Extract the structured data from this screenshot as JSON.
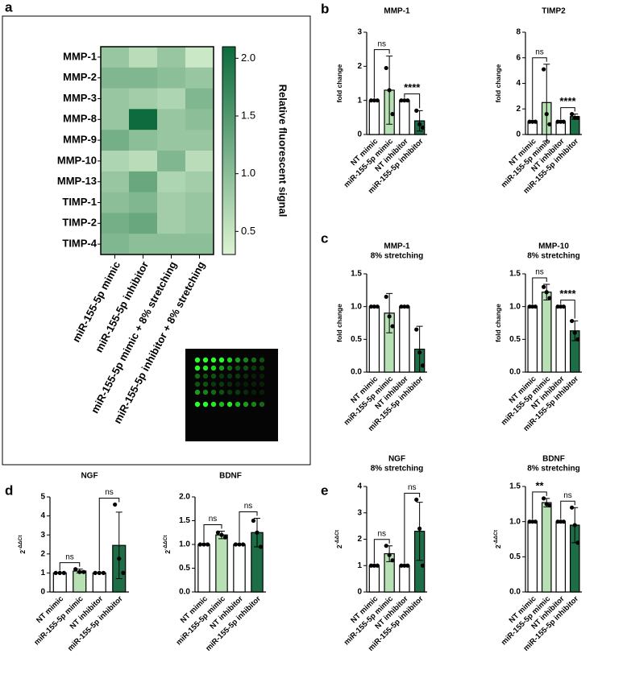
{
  "panel_labels": [
    "a",
    "b",
    "c",
    "d",
    "e"
  ],
  "chart_data": [
    {
      "type": "heatmap",
      "rows": [
        "MMP-1",
        "MMP-2",
        "MMP-3",
        "MMP-8",
        "MMP-9",
        "MMP-10",
        "MMP-13",
        "TIMP-1",
        "TIMP-2",
        "TIMP-4"
      ],
      "columns": [
        "miR-155-5p mimic",
        "miR-155-5p inhibitor",
        "miR-155-5p mimic + 8% stretching",
        "miR-155-5p inhibitor + 8% stretching"
      ],
      "values": [
        [
          0.9,
          0.6,
          0.9,
          0.45
        ],
        [
          1.1,
          1.1,
          1.0,
          0.9
        ],
        [
          0.9,
          0.8,
          0.7,
          1.1
        ],
        [
          0.9,
          2.1,
          0.9,
          1.0
        ],
        [
          1.2,
          1.0,
          0.9,
          0.9
        ],
        [
          0.7,
          0.6,
          1.1,
          0.6
        ],
        [
          0.9,
          1.3,
          0.7,
          0.8
        ],
        [
          1.0,
          1.1,
          0.8,
          0.9
        ],
        [
          1.2,
          1.3,
          0.8,
          0.9
        ],
        [
          1.1,
          1.0,
          1.0,
          1.0
        ]
      ],
      "zlim": [
        0.3,
        2.1
      ],
      "zticks": [
        0.5,
        {
          "value": 1,
          "label": "1.0"
        },
        1.5,
        {
          "value": 2,
          "label": "2.0"
        }
      ],
      "colormap": [
        "#dcf3d2",
        "#0d6b3d"
      ],
      "colorbar_label": "Relative fluorescent signal"
    },
    {
      "type": "bar",
      "title": "MMP-1",
      "ylabel": "fold change",
      "categories": [
        "NT mimic",
        "miR-155-5p mimic",
        "NT inhibitor",
        "miR-155-5p inhibitor"
      ],
      "colors": [
        "#ffffff",
        "#b7e1b5",
        "#ffffff",
        "#1d6d47"
      ],
      "values": [
        1,
        1.3,
        1,
        0.4
      ],
      "errors": [
        0,
        1.0,
        0,
        0.3
      ],
      "points": [
        [
          1,
          1,
          1
        ],
        [
          1.95,
          1.3,
          0.6
        ],
        [
          1,
          1,
          1
        ],
        [
          0.7,
          0.3,
          0.2
        ]
      ],
      "ylim": [
        0,
        3
      ],
      "yticks": [
        0,
        1,
        2,
        3
      ],
      "annotations": [
        {
          "between": [
            "NT mimic",
            "miR-155-5p mimic"
          ],
          "label": "ns"
        },
        {
          "between": [
            "NT inhibitor",
            "miR-155-5p inhibitor"
          ],
          "label": "****"
        }
      ]
    },
    {
      "type": "bar",
      "title": "TIMP2",
      "ylabel": "fold change",
      "categories": [
        "NT mimic",
        "miR-155-5p mimic",
        "NT inhibitor",
        "miR-155-5p inhibitor"
      ],
      "colors": [
        "#ffffff",
        "#b7e1b5",
        "#ffffff",
        "#1d6d47"
      ],
      "values": [
        1,
        2.5,
        1,
        1.4
      ],
      "errors": [
        0,
        3.0,
        0,
        0.2
      ],
      "points": [
        [
          1,
          1,
          1
        ],
        [
          5.1,
          1.6,
          0.8
        ],
        [
          1,
          1,
          1
        ],
        [
          1.6,
          1.3,
          1.3
        ]
      ],
      "ylim": [
        0,
        8
      ],
      "yticks": [
        0,
        2,
        4,
        6,
        8
      ],
      "annotations": [
        {
          "between": [
            "NT mimic",
            "miR-155-5p mimic"
          ],
          "label": "ns"
        },
        {
          "between": [
            "NT inhibitor",
            "miR-155-5p inhibitor"
          ],
          "label": "****"
        }
      ]
    },
    {
      "type": "bar",
      "title": "MMP-1",
      "subtitle": "8% stretching",
      "ylabel": "fold change",
      "categories": [
        "NT mimic",
        "miR-155-5p mimic",
        "NT inhibitor",
        "miR-155-5p inhibitor"
      ],
      "colors": [
        "#ffffff",
        "#b7e1b5",
        "#ffffff",
        "#1d6d47"
      ],
      "values": [
        1,
        0.9,
        1,
        0.35
      ],
      "errors": [
        0,
        0.3,
        0,
        0.35
      ],
      "points": [
        [
          1,
          1,
          1
        ],
        [
          1.15,
          0.85,
          0.7
        ],
        [
          1,
          1,
          1
        ],
        [
          0.65,
          0.3,
          0.1
        ]
      ],
      "ylim": [
        0,
        1.5
      ],
      "yticks": [
        {
          "value": 0,
          "label": "0.0"
        },
        0.5,
        {
          "value": 1,
          "label": "1.0"
        },
        1.5
      ],
      "annotations": []
    },
    {
      "type": "bar",
      "title": "MMP-10",
      "subtitle": "8% stretching",
      "ylabel": "fold change",
      "categories": [
        "NT mimic",
        "miR-155-5p mimic",
        "NT inhibitor",
        "miR-155-5p inhibitor"
      ],
      "colors": [
        "#ffffff",
        "#b7e1b5",
        "#ffffff",
        "#1d6d47"
      ],
      "values": [
        1,
        1.22,
        1,
        0.63
      ],
      "errors": [
        0,
        0.12,
        0,
        0.15
      ],
      "points": [
        [
          1,
          1,
          1
        ],
        [
          1.3,
          1.22,
          1.13
        ],
        [
          1,
          1,
          1
        ],
        [
          0.78,
          0.6,
          0.5
        ]
      ],
      "ylim": [
        0,
        1.5
      ],
      "yticks": [
        {
          "value": 0,
          "label": "0.0"
        },
        0.5,
        {
          "value": 1,
          "label": "1.0"
        },
        1.5
      ],
      "annotations": [
        {
          "between": [
            "NT mimic",
            "miR-155-5p mimic"
          ],
          "label": "ns"
        },
        {
          "between": [
            "NT inhibitor",
            "miR-155-5p inhibitor"
          ],
          "label": "****"
        }
      ]
    },
    {
      "type": "bar",
      "title": "NGF",
      "ylabel": "2",
      "ylabel_superscript": "-ΔΔCt",
      "categories": [
        "NT mimic",
        "miR-155-5p mimic",
        "NT inhibitor",
        "miR-155-5p inhibitor"
      ],
      "colors": [
        "#ffffff",
        "#b7e1b5",
        "#ffffff",
        "#1d6d47"
      ],
      "values": [
        1,
        1.1,
        1,
        2.45
      ],
      "errors": [
        0,
        0.1,
        0,
        1.75
      ],
      "points": [
        [
          1,
          1,
          1
        ],
        [
          1.2,
          1.05,
          1.05
        ],
        [
          1,
          1,
          1
        ],
        [
          4.6,
          1.75,
          1.0
        ]
      ],
      "ylim": [
        0,
        5
      ],
      "yticks": [
        0,
        1,
        2,
        3,
        4,
        5
      ],
      "annotations": [
        {
          "between": [
            "NT mimic",
            "miR-155-5p mimic"
          ],
          "label": "ns"
        },
        {
          "between": [
            "NT inhibitor",
            "miR-155-5p inhibitor"
          ],
          "label": "ns"
        }
      ]
    },
    {
      "type": "bar",
      "title": "BDNF",
      "ylabel": "2",
      "ylabel_superscript": "-ΔΔCt",
      "categories": [
        "NT mimic",
        "miR-155-5p mimic",
        "NT inhibitor",
        "miR-155-5p inhibitor"
      ],
      "colors": [
        "#ffffff",
        "#b7e1b5",
        "#ffffff",
        "#1d6d47"
      ],
      "values": [
        1,
        1.2,
        1,
        1.25
      ],
      "errors": [
        0,
        0.08,
        0,
        0.3
      ],
      "points": [
        [
          1,
          1,
          1
        ],
        [
          1.25,
          1.2,
          1.15
        ],
        [
          1,
          1,
          1
        ],
        [
          1.5,
          1.25,
          0.95
        ]
      ],
      "ylim": [
        0,
        2
      ],
      "yticks": [
        {
          "value": 0,
          "label": "0.0"
        },
        0.5,
        {
          "value": 1,
          "label": "1.0"
        },
        1.5,
        {
          "value": 2,
          "label": "2.0"
        }
      ],
      "annotations": [
        {
          "between": [
            "NT mimic",
            "miR-155-5p mimic"
          ],
          "label": "ns"
        },
        {
          "between": [
            "NT inhibitor",
            "miR-155-5p inhibitor"
          ],
          "label": "ns"
        }
      ]
    },
    {
      "type": "bar",
      "title": "NGF",
      "subtitle": "8% stretching",
      "ylabel": "2",
      "ylabel_superscript": "-ΔΔCt",
      "categories": [
        "NT mimic",
        "miR-155-5p mimic",
        "NT inhibitor",
        "miR-155-5p inhibitor"
      ],
      "colors": [
        "#ffffff",
        "#b7e1b5",
        "#ffffff",
        "#1d6d47"
      ],
      "values": [
        1,
        1.45,
        1,
        2.3
      ],
      "errors": [
        0,
        0.3,
        0,
        1.1
      ],
      "points": [
        [
          1,
          1,
          1
        ],
        [
          1.75,
          1.4,
          1.2
        ],
        [
          1,
          1,
          1
        ],
        [
          3.5,
          2.4,
          1.0
        ]
      ],
      "ylim": [
        0,
        4
      ],
      "yticks": [
        0,
        1,
        2,
        3,
        4
      ],
      "annotations": [
        {
          "between": [
            "NT mimic",
            "miR-155-5p mimic"
          ],
          "label": "ns"
        },
        {
          "between": [
            "NT inhibitor",
            "miR-155-5p inhibitor"
          ],
          "label": "ns"
        }
      ]
    },
    {
      "type": "bar",
      "title": "BDNF",
      "subtitle": "8% stretching",
      "ylabel": "2",
      "ylabel_superscript": "-ΔΔCt",
      "categories": [
        "NT mimic",
        "miR-155-5p mimic",
        "NT inhibitor",
        "miR-155-5p inhibitor"
      ],
      "colors": [
        "#ffffff",
        "#b7e1b5",
        "#ffffff",
        "#1d6d47"
      ],
      "values": [
        1,
        1.27,
        1,
        0.95
      ],
      "errors": [
        0,
        0.06,
        0,
        0.25
      ],
      "points": [
        [
          1,
          1,
          1
        ],
        [
          1.33,
          1.25,
          1.23
        ],
        [
          1,
          1,
          1
        ],
        [
          1.2,
          0.95,
          0.7
        ]
      ],
      "ylim": [
        0,
        1.5
      ],
      "yticks": [
        {
          "value": 0,
          "label": "0.0"
        },
        0.5,
        {
          "value": 1,
          "label": "1.0"
        },
        1.5
      ],
      "annotations": [
        {
          "between": [
            "NT mimic",
            "miR-155-5p mimic"
          ],
          "label": "**"
        },
        {
          "between": [
            "NT inhibitor",
            "miR-155-5p inhibitor"
          ],
          "label": "ns"
        }
      ]
    }
  ]
}
